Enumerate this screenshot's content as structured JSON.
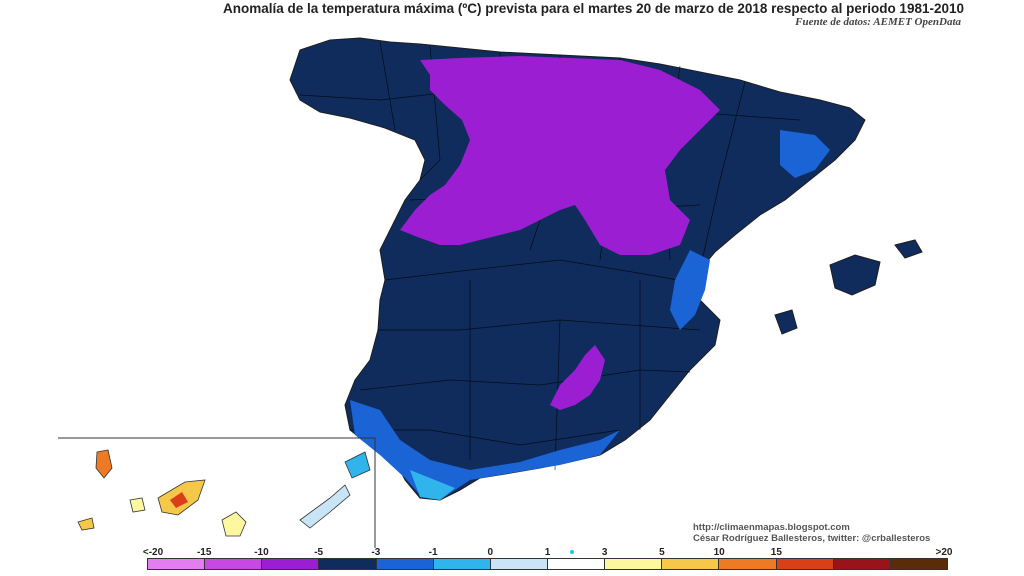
{
  "title": "Anomalía de la temperatura máxima (ºC) prevista para el martes 20 de marzo de 2018 respecto al periodo 1981-2010",
  "source": "Fuente de datos: AEMET OpenData",
  "credits": {
    "url": "http://climaenmapas.blogspot.com",
    "author": "César Rodríguez Ballesteros, twitter: @crballesteros"
  },
  "legend": {
    "labels": [
      "<-20",
      "-15",
      "-10",
      "-5",
      "-3",
      "-1",
      "0",
      "1",
      "3",
      "5",
      "10",
      "15",
      ">20"
    ],
    "colors": [
      "#e27ef0",
      "#c64ae2",
      "#9b1ed2",
      "#0f2c5c",
      "#1a64d6",
      "#2fb4ec",
      "#c8e4f6",
      "#ffffff",
      "#fdf7a0",
      "#f6c84a",
      "#ee7a26",
      "#d8401a",
      "#98141a",
      "#5a2c0a"
    ]
  },
  "colors": {
    "land_dark": "#0f2c5c",
    "purple": "#9b1ed2",
    "mid_blue": "#1a64d6",
    "light_blue": "#2fb4ec",
    "pale_blue": "#c8e4f6",
    "borders": "#1e1e1e"
  }
}
